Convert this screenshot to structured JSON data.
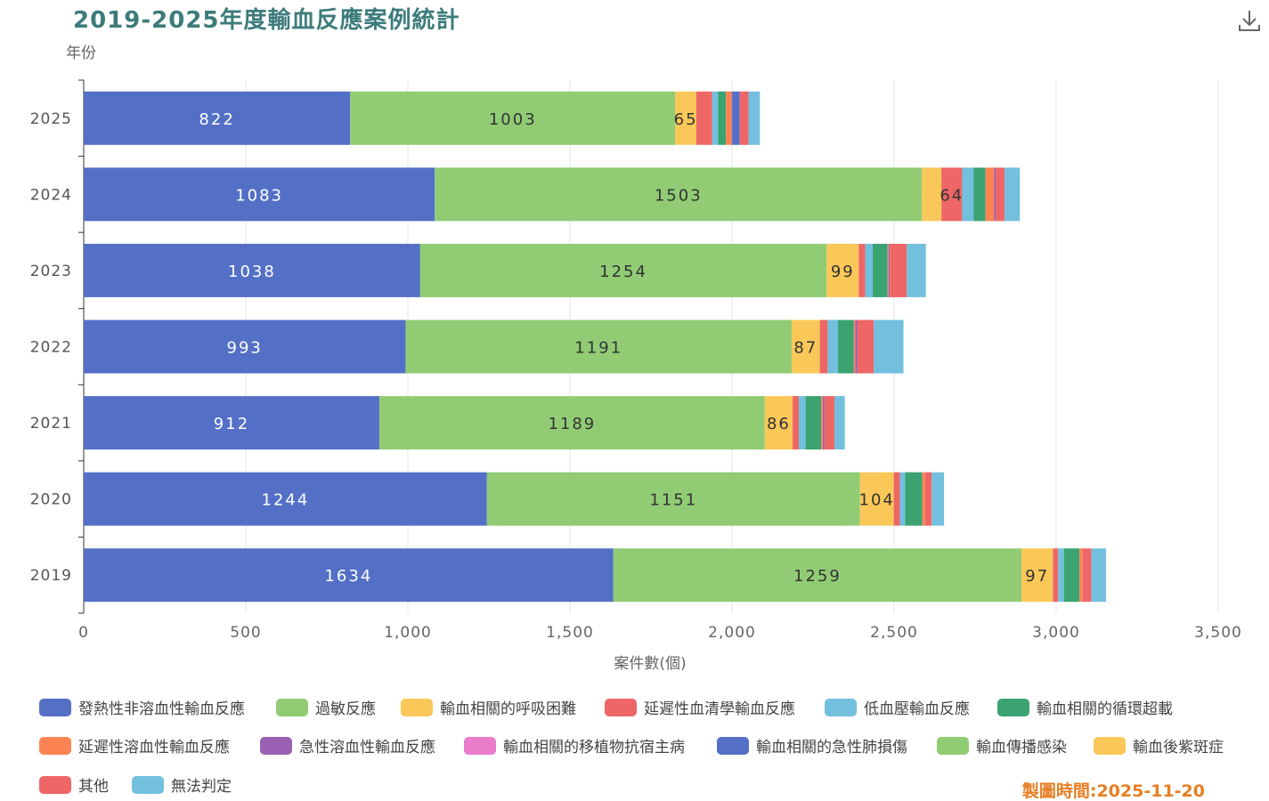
{
  "chart_data": {
    "type": "bar",
    "orientation": "horizontal",
    "stacked": true,
    "title": "2019-2025年度輸血反應案例統計",
    "ylabel": "年份",
    "xlabel": "案件數(個)",
    "xlim": [
      0,
      3500
    ],
    "xticks": [
      "0",
      "500",
      "1,000",
      "1,500",
      "2,000",
      "2,500",
      "3,000",
      "3,500"
    ],
    "xtick_values": [
      0,
      500,
      1000,
      1500,
      2000,
      2500,
      3000,
      3500
    ],
    "categories": [
      "2025",
      "2024",
      "2023",
      "2022",
      "2021",
      "2020",
      "2019"
    ],
    "grid": true,
    "legend_position": "bottom",
    "series": [
      {
        "name": "發熱性非溶血性輸血反應",
        "color": "#5470c6",
        "values": [
          822,
          1083,
          1038,
          993,
          912,
          1244,
          1634
        ]
      },
      {
        "name": "過敏反應",
        "color": "#91cc75",
        "values": [
          1003,
          1503,
          1254,
          1191,
          1189,
          1151,
          1259
        ]
      },
      {
        "name": "輸血相關的呼吸困難",
        "color": "#fac858",
        "values": [
          65,
          60,
          99,
          87,
          86,
          104,
          97
        ]
      },
      {
        "name": "延遲性血清學輸血反應",
        "color": "#ee6666",
        "values": [
          49,
          64,
          20,
          24,
          19,
          19,
          16
        ]
      },
      {
        "name": "低血壓輸血反應",
        "color": "#73c0de",
        "values": [
          18,
          35,
          23,
          32,
          21,
          16,
          18
        ]
      },
      {
        "name": "輸血相關的循環超載",
        "color": "#3ba272",
        "values": [
          24,
          37,
          46,
          48,
          48,
          53,
          48
        ]
      },
      {
        "name": "延遲性溶血性輸血反應",
        "color": "#fc8452",
        "values": [
          18,
          27,
          3,
          5,
          5,
          9,
          10
        ]
      },
      {
        "name": "急性溶血性輸血反應",
        "color": "#9a60b4",
        "values": [
          2,
          5,
          4,
          7,
          5,
          0,
          0
        ]
      },
      {
        "name": "輸血相關的移植物抗宿主病",
        "color": "#ea7ccc",
        "values": [
          0,
          0,
          0,
          0,
          0,
          0,
          0
        ]
      },
      {
        "name": "輸血相關的急性肺損傷",
        "color": "#5470c6",
        "values": [
          23,
          0,
          0,
          0,
          0,
          0,
          0
        ]
      },
      {
        "name": "輸血傳播感染",
        "color": "#91cc75",
        "values": [
          0,
          0,
          0,
          0,
          0,
          0,
          0
        ]
      },
      {
        "name": "輸血後紫斑症",
        "color": "#fac858",
        "values": [
          0,
          0,
          0,
          0,
          0,
          0,
          0
        ]
      },
      {
        "name": "其他",
        "color": "#ee6666",
        "values": [
          27,
          27,
          52,
          50,
          31,
          20,
          27
        ]
      },
      {
        "name": "無法判定",
        "color": "#73c0de",
        "values": [
          35,
          47,
          59,
          92,
          32,
          38,
          45
        ]
      }
    ]
  },
  "footer": "製圖時間:2025-11-20"
}
